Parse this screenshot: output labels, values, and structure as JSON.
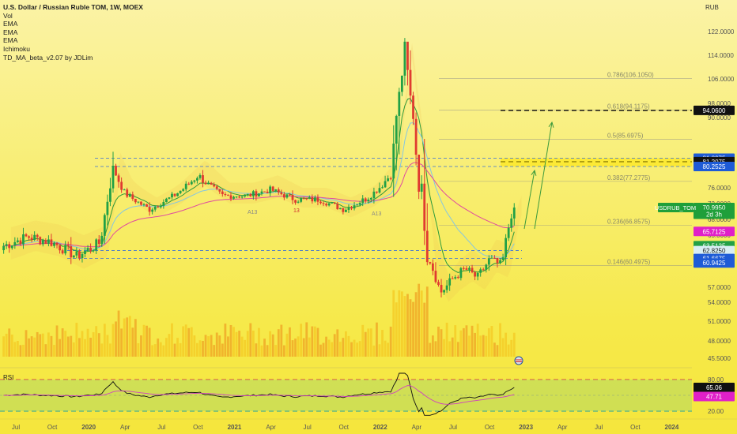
{
  "legend": {
    "title": "U.S. Dollar / Russian Ruble TOM, 1W, MOEX",
    "items": [
      "Vol",
      "EMA",
      "EMA",
      "EMA",
      "Ichimoku",
      "TD_MA_beta_v2.07 by JDLim"
    ]
  },
  "currency": "RUB",
  "rsi_label": "RSI",
  "chart_data": {
    "type": "line",
    "title": "U.S. Dollar / Russian Ruble TOM, 1W, MOEX",
    "ylabel": "RUB",
    "ylim": [
      43.5,
      126
    ],
    "y_ticks": [
      "122.0000",
      "114.0000",
      "106.0000",
      "98.0000",
      "90.0000",
      "82.0000",
      "76.0000",
      "72.0000",
      "68.0000",
      "65.0000",
      "62.0000",
      "57.0000",
      "54.0000",
      "51.0000",
      "48.0000",
      "45.5000"
    ],
    "x_ticks": [
      "Jul",
      "Oct",
      "2020",
      "Apr",
      "Jul",
      "Oct",
      "2021",
      "Apr",
      "Jul",
      "Oct",
      "2022",
      "Apr",
      "Jul",
      "Oct",
      "2023",
      "Apr",
      "Jul",
      "Oct",
      "2024"
    ],
    "price_series": {
      "name": "USDRUB_TOM",
      "x": [
        "2019-06",
        "2019-08",
        "2019-10",
        "2019-12",
        "2020-02",
        "2020-03",
        "2020-04",
        "2020-06",
        "2020-08",
        "2020-10",
        "2020-12",
        "2021-02",
        "2021-04",
        "2021-06",
        "2021-08",
        "2021-10",
        "2021-12",
        "2022-02",
        "2022-03",
        "2022-04",
        "2022-05",
        "2022-06",
        "2022-07",
        "2022-08",
        "2022-09",
        "2022-10",
        "2022-11",
        "2022-12"
      ],
      "close": [
        63.5,
        64.8,
        64.0,
        62.0,
        64.0,
        80.0,
        74.5,
        70.5,
        74.0,
        78.5,
        74.0,
        74.0,
        75.5,
        73.0,
        73.0,
        70.5,
        73.5,
        79.0,
        116.0,
        82.0,
        62.0,
        56.0,
        58.5,
        60.0,
        58.5,
        61.5,
        60.5,
        71.0
      ]
    },
    "fib_levels": [
      {
        "label": "0.786(106.1050)",
        "value": 106.105
      },
      {
        "label": "0.618(94.1175)",
        "value": 94.1175
      },
      {
        "label": "0.5(85.6975)",
        "value": 85.6975
      },
      {
        "label": "0.382(77.2775)",
        "value": 77.2775
      },
      {
        "label": "0.236(66.8575)",
        "value": 66.8575
      },
      {
        "label": "0.146(60.4975)",
        "value": 60.4975
      }
    ],
    "horizontal_levels": [
      94.06,
      81.2075,
      80.2525,
      81.8975,
      62.825,
      61.6675
    ],
    "price_labels": [
      {
        "text": "94.0600",
        "value": 94.06,
        "color": "#111111"
      },
      {
        "text": "81.8975",
        "value": 81.8975,
        "color": "#1e5bd6"
      },
      {
        "text": "81.2075",
        "value": 81.2075,
        "color": "#111111"
      },
      {
        "text": "80.2525",
        "value": 80.2525,
        "color": "#1e5bd6"
      },
      {
        "text": "70.9950",
        "value": 70.995,
        "color": "#1f9f3a"
      },
      {
        "text": "2d 3h",
        "value": 69.3,
        "color": "#1f9f3a"
      },
      {
        "text": "65.7125",
        "value": 65.7125,
        "color": "#e020c8"
      },
      {
        "text": "63.5125",
        "value": 63.5125,
        "color": "#22a046"
      },
      {
        "text": "62.8250",
        "value": 62.825,
        "color": "#d8eef4"
      },
      {
        "text": "61.6675",
        "value": 61.6675,
        "color": "#1e5bd6"
      },
      {
        "text": "60.9425",
        "value": 60.9425,
        "color": "#1e5bd6"
      }
    ],
    "symbol_tag": "USDRUB_TOM",
    "td_labels": [
      "A13",
      "13",
      "A13"
    ],
    "rsi": {
      "name": "RSI",
      "value_labels": [
        "80.00",
        "65.06",
        "47.71",
        "20.00"
      ],
      "levels": [
        80,
        20
      ],
      "last": 65.06,
      "ma": 47.71
    },
    "colors": {
      "up": "#22a046",
      "down": "#e03b30",
      "rsi_line": "#111111",
      "rsi_ma": "#d040c0",
      "fib": "#888888"
    },
    "grid": false,
    "legend_position": "top-left"
  }
}
